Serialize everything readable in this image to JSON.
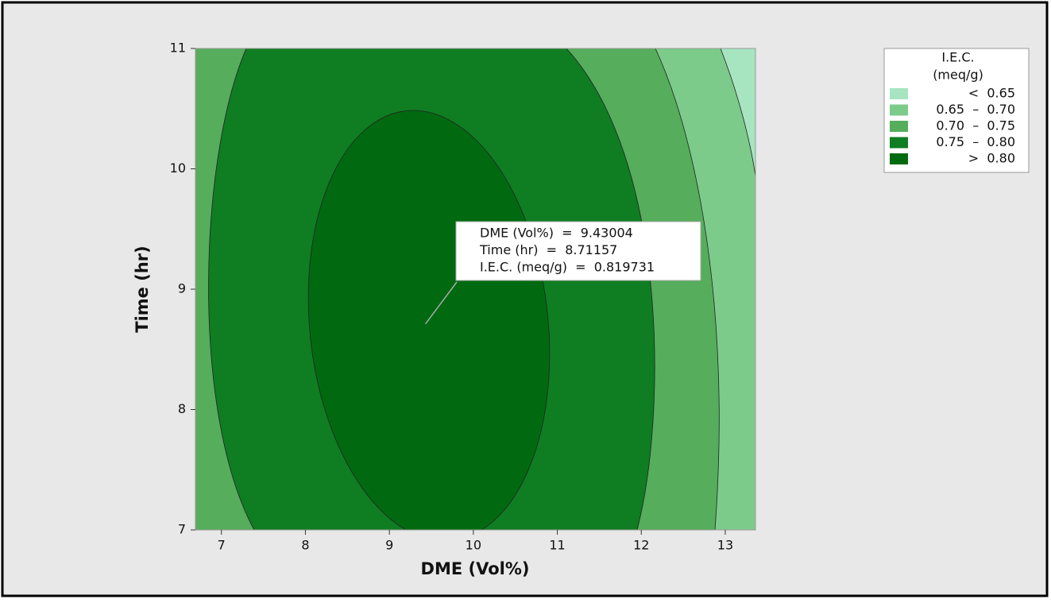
{
  "chart_data": {
    "type": "contour",
    "xlabel": "DME (Vol%)",
    "ylabel": "Time (hr)",
    "xlim": [
      6.69,
      13.36
    ],
    "ylim": [
      7,
      11
    ],
    "xticks": [
      7,
      8,
      9,
      10,
      11,
      12,
      13
    ],
    "yticks": [
      7,
      8,
      9,
      10,
      11
    ],
    "legend": {
      "title": [
        "I.E.C.",
        "(meq/g)"
      ],
      "position": "right",
      "entries": [
        {
          "label": "<  0.65",
          "color": "#a6e5c0"
        },
        {
          "label": "0.65  –  0.70",
          "color": "#7dcb8a"
        },
        {
          "label": "0.70  –  0.75",
          "color": "#56ad5c"
        },
        {
          "label": "0.75  –  0.80",
          "color": "#0f7d22"
        },
        {
          "label": ">  0.80",
          "color": "#016a10"
        }
      ]
    },
    "annotation": {
      "x": 9.43004,
      "y": 8.71157,
      "lines": [
        "DME (Vol%)  =  9.43004",
        "Time (hr)  =  8.71157",
        "I.E.C. (meq/g)  =  0.819731"
      ]
    }
  }
}
